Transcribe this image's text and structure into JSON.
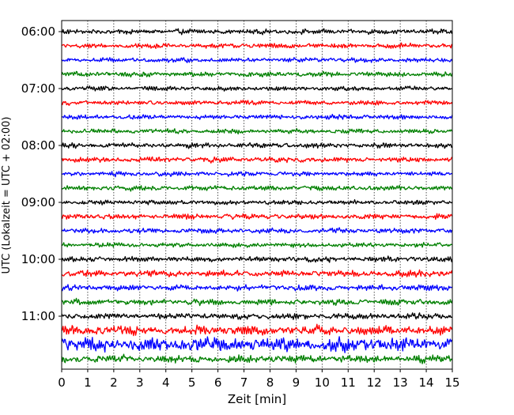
{
  "chart_data": {
    "type": "line",
    "title": "",
    "xlabel": "Zeit  [min]",
    "ylabel": "UTC (Lokalzeit = UTC + 02:00)",
    "xlim": [
      0,
      15
    ],
    "x_ticks": [
      0,
      1,
      2,
      3,
      4,
      5,
      6,
      7,
      8,
      9,
      10,
      11,
      12,
      13,
      14,
      15
    ],
    "y_tick_labels": [
      "06:00",
      "07:00",
      "08:00",
      "09:00",
      "10:00",
      "11:00"
    ],
    "grid": "vertical dotted at each minute",
    "trace_interval_minutes": 15,
    "trace_colors": [
      "#000000",
      "#ff0000",
      "#0000ff",
      "#008000"
    ],
    "series": [
      {
        "start": "06:00",
        "color": "#000000",
        "amplitude": 0.22
      },
      {
        "start": "06:15",
        "color": "#ff0000",
        "amplitude": 0.22
      },
      {
        "start": "06:30",
        "color": "#0000ff",
        "amplitude": 0.2
      },
      {
        "start": "06:45",
        "color": "#008000",
        "amplitude": 0.22
      },
      {
        "start": "07:00",
        "color": "#000000",
        "amplitude": 0.2
      },
      {
        "start": "07:15",
        "color": "#ff0000",
        "amplitude": 0.2
      },
      {
        "start": "07:30",
        "color": "#0000ff",
        "amplitude": 0.2
      },
      {
        "start": "07:45",
        "color": "#008000",
        "amplitude": 0.2
      },
      {
        "start": "08:00",
        "color": "#000000",
        "amplitude": 0.22
      },
      {
        "start": "08:15",
        "color": "#ff0000",
        "amplitude": 0.22
      },
      {
        "start": "08:30",
        "color": "#0000ff",
        "amplitude": 0.2
      },
      {
        "start": "08:45",
        "color": "#008000",
        "amplitude": 0.22
      },
      {
        "start": "09:00",
        "color": "#000000",
        "amplitude": 0.2
      },
      {
        "start": "09:15",
        "color": "#ff0000",
        "amplitude": 0.24
      },
      {
        "start": "09:30",
        "color": "#0000ff",
        "amplitude": 0.22
      },
      {
        "start": "09:45",
        "color": "#008000",
        "amplitude": 0.2
      },
      {
        "start": "10:00",
        "color": "#000000",
        "amplitude": 0.24
      },
      {
        "start": "10:15",
        "color": "#ff0000",
        "amplitude": 0.28
      },
      {
        "start": "10:30",
        "color": "#0000ff",
        "amplitude": 0.26
      },
      {
        "start": "10:45",
        "color": "#008000",
        "amplitude": 0.26
      },
      {
        "start": "11:00",
        "color": "#000000",
        "amplitude": 0.26
      },
      {
        "start": "11:15",
        "color": "#ff0000",
        "amplitude": 0.4
      },
      {
        "start": "11:30",
        "color": "#0000ff",
        "amplitude": 0.6
      },
      {
        "start": "11:45",
        "color": "#008000",
        "amplitude": 0.34
      }
    ]
  }
}
